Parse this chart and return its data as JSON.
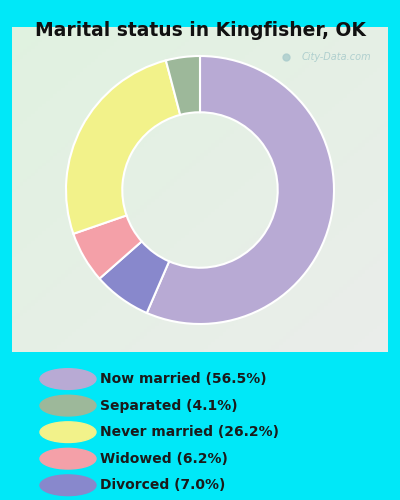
{
  "title": "Marital status in Kingfisher, OK",
  "slices": [
    {
      "label": "Now married (56.5%)",
      "value": 56.5,
      "color": "#b8aad4"
    },
    {
      "label": "Separated (4.1%)",
      "value": 4.1,
      "color": "#9db89a"
    },
    {
      "label": "Never married (26.2%)",
      "value": 26.2,
      "color": "#f2f28a"
    },
    {
      "label": "Widowed (6.2%)",
      "value": 6.2,
      "color": "#f4a0a8"
    },
    {
      "label": "Divorced (7.0%)",
      "value": 7.0,
      "color": "#8888cc"
    }
  ],
  "pie_order": [
    0,
    4,
    3,
    2,
    1
  ],
  "start_angle": 90,
  "counterclock": false,
  "donut_width": 0.42,
  "bg_outer": "#00e8f8",
  "bg_chart": "#d8f0d8",
  "title_color": "#111111",
  "title_fontsize": 13.5,
  "legend_text_color": "#1a1a1a",
  "legend_fontsize": 10,
  "watermark_text": "City-Data.com",
  "watermark_color": "#aacccc",
  "wedge_edge_color": "white",
  "wedge_linewidth": 1.5
}
